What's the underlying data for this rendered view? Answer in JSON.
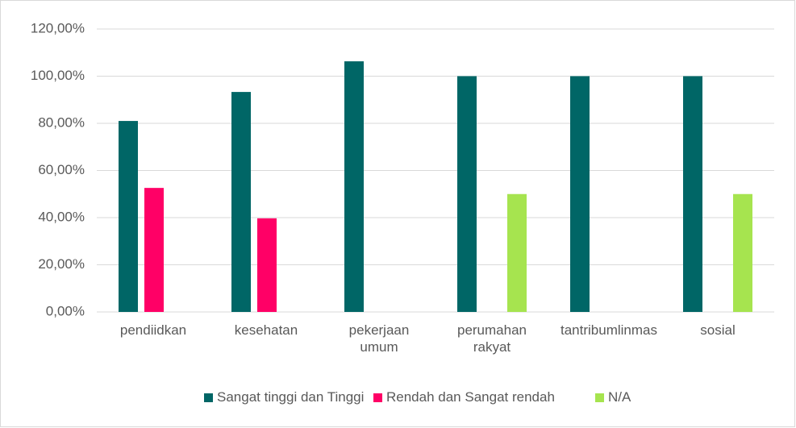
{
  "chart_data": {
    "type": "bar",
    "categories": [
      "pendiidkan",
      "kesehatan",
      "pekerjaan umum",
      "perumahan rakyat",
      "tantribumlinmas",
      "sosial"
    ],
    "series": [
      {
        "name": "Sangat tinggi dan Tinggi",
        "color": "#006666",
        "values": [
          81,
          93.3,
          106.3,
          100,
          100,
          100
        ]
      },
      {
        "name": "Rendah dan Sangat rendah",
        "color": "#ff0066",
        "values": [
          52.6,
          39.7,
          null,
          null,
          null,
          null
        ]
      },
      {
        "name": "N/A",
        "color": "#a6e44f",
        "values": [
          null,
          null,
          null,
          50,
          null,
          50
        ]
      }
    ],
    "ylim": [
      0,
      120
    ],
    "yticks": [
      {
        "value": 0,
        "label": "0,00%"
      },
      {
        "value": 20,
        "label": "20,00%"
      },
      {
        "value": 40,
        "label": "40,00%"
      },
      {
        "value": 60,
        "label": "60,00%"
      },
      {
        "value": 80,
        "label": "80,00%"
      },
      {
        "value": 100,
        "label": "100,00%"
      },
      {
        "value": 120,
        "label": "120,00%"
      }
    ],
    "grid": true,
    "legend": "bottom"
  }
}
